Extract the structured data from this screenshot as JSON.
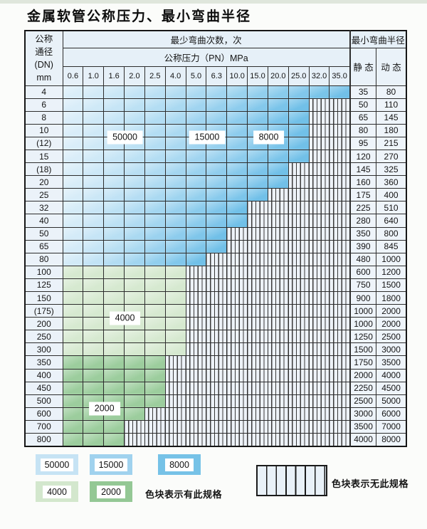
{
  "title": "金属软管公称压力、最小弯曲半径",
  "table": {
    "header": {
      "dn_lines": [
        "公称",
        "通径",
        "(DN)",
        "mm"
      ],
      "cycles_title": "最少弯曲次数，次",
      "pressure_title": "公称压力（PN）MPa",
      "pressures": [
        "0.6",
        "1.0",
        "1.6",
        "2.0",
        "2.5",
        "4.0",
        "5.0",
        "6.3",
        "10.0",
        "15.0",
        "20.0",
        "25.0",
        "32.0",
        "35.0"
      ],
      "radius_title": "最小弯曲半径",
      "static_label": "静 态",
      "dynamic_label": "动 态"
    },
    "rows": [
      {
        "dn": "4",
        "colored": 14,
        "sec": "b",
        "static": "35",
        "dynamic": "80"
      },
      {
        "dn": "6",
        "colored": 12,
        "sec": "b",
        "static": "50",
        "dynamic": "110"
      },
      {
        "dn": "8",
        "colored": 12,
        "sec": "b",
        "static": "65",
        "dynamic": "145"
      },
      {
        "dn": "10",
        "colored": 12,
        "sec": "b",
        "static": "80",
        "dynamic": "180"
      },
      {
        "dn": "(12)",
        "colored": 12,
        "sec": "b",
        "static": "95",
        "dynamic": "215"
      },
      {
        "dn": "15",
        "colored": 12,
        "sec": "b",
        "static": "120",
        "dynamic": "270"
      },
      {
        "dn": "(18)",
        "colored": 11,
        "sec": "b",
        "static": "145",
        "dynamic": "325"
      },
      {
        "dn": "20",
        "colored": 11,
        "sec": "b",
        "static": "160",
        "dynamic": "360"
      },
      {
        "dn": "25",
        "colored": 10,
        "sec": "b",
        "static": "175",
        "dynamic": "400"
      },
      {
        "dn": "32",
        "colored": 9,
        "sec": "b",
        "static": "225",
        "dynamic": "510"
      },
      {
        "dn": "40",
        "colored": 9,
        "sec": "b",
        "static": "280",
        "dynamic": "640"
      },
      {
        "dn": "50",
        "colored": 8,
        "sec": "b",
        "static": "350",
        "dynamic": "800"
      },
      {
        "dn": "65",
        "colored": 8,
        "sec": "b",
        "static": "390",
        "dynamic": "845"
      },
      {
        "dn": "80",
        "colored": 7,
        "sec": "b",
        "static": "480",
        "dynamic": "1000"
      },
      {
        "dn": "100",
        "colored": 6,
        "sec": "gl",
        "static": "600",
        "dynamic": "1200"
      },
      {
        "dn": "125",
        "colored": 6,
        "sec": "gl",
        "static": "750",
        "dynamic": "1500"
      },
      {
        "dn": "150",
        "colored": 6,
        "sec": "gl",
        "static": "900",
        "dynamic": "1800"
      },
      {
        "dn": "(175)",
        "colored": 6,
        "sec": "gl",
        "static": "1000",
        "dynamic": "2000"
      },
      {
        "dn": "200",
        "colored": 6,
        "sec": "gl",
        "static": "1000",
        "dynamic": "2000"
      },
      {
        "dn": "250",
        "colored": 6,
        "sec": "gl",
        "static": "1250",
        "dynamic": "2500"
      },
      {
        "dn": "300",
        "colored": 6,
        "sec": "gl",
        "static": "1500",
        "dynamic": "3000"
      },
      {
        "dn": "350",
        "colored": 5,
        "sec": "gd",
        "static": "1750",
        "dynamic": "3500"
      },
      {
        "dn": "400",
        "colored": 5,
        "sec": "gd",
        "static": "2000",
        "dynamic": "4000"
      },
      {
        "dn": "450",
        "colored": 5,
        "sec": "gd",
        "static": "2250",
        "dynamic": "4500"
      },
      {
        "dn": "500",
        "colored": 5,
        "sec": "gd",
        "static": "2500",
        "dynamic": "5000"
      },
      {
        "dn": "600",
        "colored": 4,
        "sec": "gd",
        "static": "3000",
        "dynamic": "6000"
      },
      {
        "dn": "700",
        "colored": 3,
        "sec": "gd",
        "static": "3500",
        "dynamic": "7000"
      },
      {
        "dn": "800",
        "colored": 3,
        "sec": "gd",
        "static": "4000",
        "dynamic": "8000"
      }
    ],
    "overlays": [
      {
        "label": "50000",
        "after_row": 4,
        "cols": [
          3,
          4
        ]
      },
      {
        "label": "15000",
        "after_row": 4,
        "cols": [
          7,
          8
        ]
      },
      {
        "label": "8000",
        "after_row": 4,
        "cols": [
          10,
          11
        ]
      },
      {
        "label": "4000",
        "after_row": 18,
        "cols": [
          3,
          4
        ]
      },
      {
        "label": "2000",
        "after_row": 25,
        "cols": [
          2,
          3
        ]
      }
    ]
  },
  "legend": {
    "swatches": [
      {
        "label": "50000",
        "color": "#c6e3f4"
      },
      {
        "label": "15000",
        "color": "#a0d2ee"
      },
      {
        "label": "8000",
        "color": "#76c2e7"
      },
      {
        "label": "4000",
        "color": "#d3e7cd"
      },
      {
        "label": "2000",
        "color": "#94c895"
      }
    ],
    "has_spec_text": "色块表示有此规格",
    "no_spec_text": "色块表示无此规格"
  },
  "colors": {
    "blue_light": "#e2f1fa",
    "blue_dark": "#71c0e8",
    "green_light": "#d6e9d0",
    "green_dark": "#9ccd9d",
    "hatch_bg": "#edf2f8",
    "grid": "#2d2d2d"
  }
}
